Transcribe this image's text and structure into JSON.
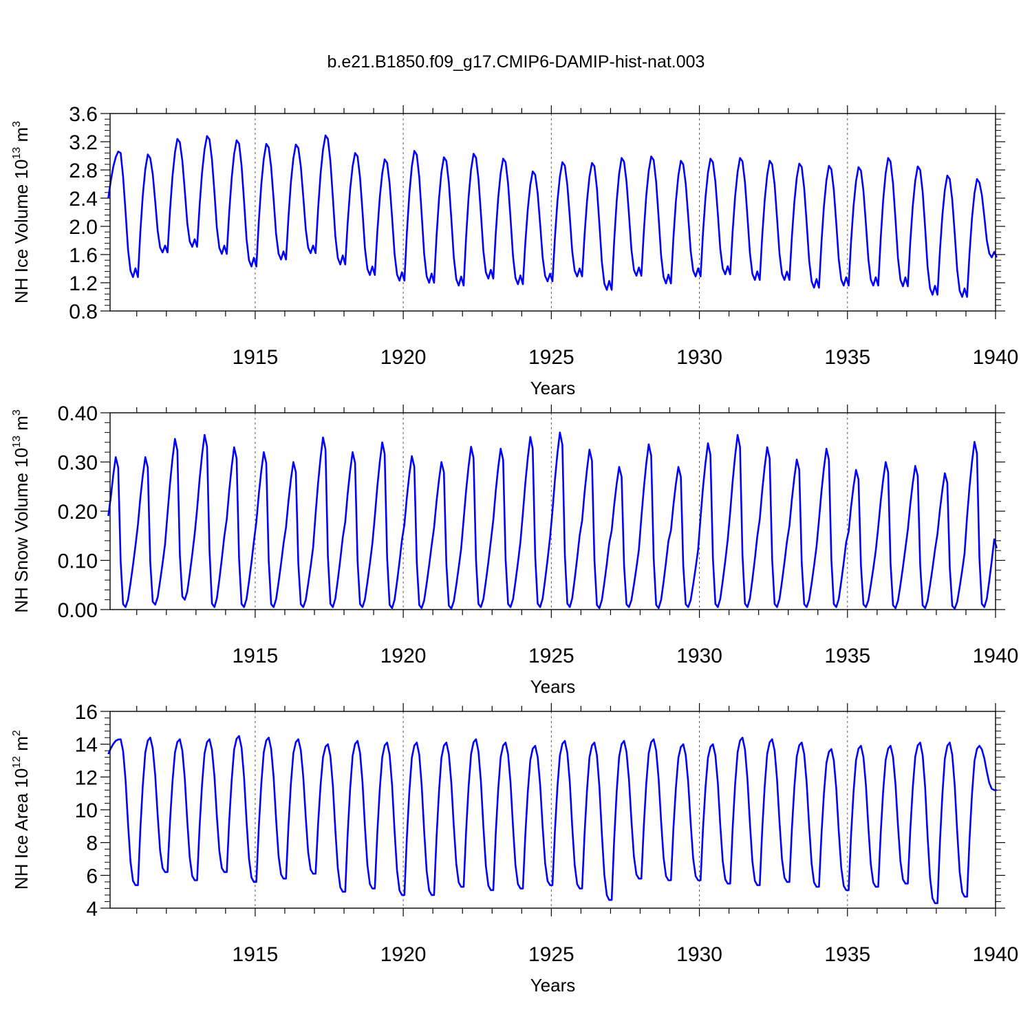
{
  "figure": {
    "title": "b.e21.B1850.f09_g17.CMIP6-DAMIP-hist-nat.003"
  },
  "chart_data": [
    {
      "type": "line",
      "id": "ice-volume",
      "xlabel": "Years",
      "ylabel_main": "NH Ice Volume 10",
      "ylabel_exp": "13",
      "ylabel_unit": " m",
      "ylabel_unit_exp": "3",
      "xlim": [
        1910.1,
        1940.0
      ],
      "ylim": [
        0.8,
        3.6
      ],
      "x_ticks": [
        1915,
        1920,
        1925,
        1930,
        1935,
        1940
      ],
      "x_tick_labels": [
        "1915",
        "1920",
        "1925",
        "1930",
        "1935",
        "1940"
      ],
      "y_ticks": [
        0.8,
        1.2,
        1.6,
        2.0,
        2.4,
        2.8,
        3.2,
        3.6
      ],
      "y_tick_labels": [
        "0.8",
        "1.2",
        "1.6",
        "2.0",
        "2.4",
        "2.8",
        "3.2",
        "3.6"
      ],
      "gridlines_x": [
        1915,
        1920,
        1925,
        1930,
        1935
      ],
      "line_color": "#0000ff",
      "series": [
        {
          "start_year": 1910.04,
          "step": 0.08333,
          "monthly_profile": [
            0.0,
            0.37,
            0.67,
            0.88,
            1.0,
            0.97,
            0.8,
            0.52,
            0.22,
            0.05,
            0.0,
            0.07
          ],
          "annual_max": [
            3.06,
            3.02,
            3.24,
            3.28,
            3.22,
            3.17,
            3.16,
            3.29,
            3.04,
            2.95,
            3.07,
            2.98,
            3.03,
            2.96,
            2.78,
            2.91,
            2.9,
            2.97,
            2.99,
            2.93,
            2.96,
            2.97,
            2.93,
            2.89,
            2.86,
            2.84,
            2.97,
            2.85,
            2.72,
            2.67
          ],
          "annual_min": [
            2.4,
            1.28,
            1.63,
            1.71,
            1.61,
            1.43,
            1.53,
            1.62,
            1.46,
            1.31,
            1.23,
            1.2,
            1.16,
            1.26,
            1.18,
            1.22,
            1.29,
            1.1,
            1.3,
            1.19,
            1.29,
            1.32,
            1.24,
            1.24,
            1.13,
            1.16,
            1.16,
            1.15,
            1.03,
            1.0,
            1.56
          ]
        }
      ]
    },
    {
      "type": "line",
      "id": "snow-volume",
      "xlabel": "Years",
      "ylabel_main": "NH Snow Volume 10",
      "ylabel_exp": "13",
      "ylabel_unit": " m",
      "ylabel_unit_exp": "3",
      "xlim": [
        1910.1,
        1940.0
      ],
      "ylim": [
        0.0,
        0.4
      ],
      "x_ticks": [
        1915,
        1920,
        1925,
        1930,
        1935,
        1940
      ],
      "x_tick_labels": [
        "1915",
        "1920",
        "1925",
        "1930",
        "1935",
        "1940"
      ],
      "y_ticks": [
        0.0,
        0.1,
        0.2,
        0.3,
        0.4
      ],
      "y_tick_labels": [
        "0.00",
        "0.10",
        "0.20",
        "0.30",
        "0.40"
      ],
      "gridlines_x": [
        1915,
        1920,
        1925,
        1930,
        1935
      ],
      "line_color": "#0000ff",
      "series": [
        {
          "start_year": 1910.04,
          "step": 0.08333,
          "monthly_profile": [
            0.55,
            0.73,
            0.88,
            1.0,
            0.93,
            0.3,
            0.02,
            0.0,
            0.05,
            0.16,
            0.28,
            0.41
          ],
          "annual_max": [
            0.31,
            0.31,
            0.347,
            0.355,
            0.33,
            0.32,
            0.3,
            0.35,
            0.32,
            0.34,
            0.312,
            0.3,
            0.331,
            0.327,
            0.351,
            0.36,
            0.325,
            0.29,
            0.336,
            0.29,
            0.338,
            0.355,
            0.33,
            0.305,
            0.327,
            0.284,
            0.3,
            0.292,
            0.277,
            0.341
          ],
          "annual_min": [
            0.005,
            0.005,
            0.01,
            0.02,
            0.005,
            0.005,
            0.005,
            0.005,
            0.005,
            0.005,
            0.003,
            0.003,
            0.002,
            0.005,
            0.005,
            0.005,
            0.005,
            0.003,
            0.005,
            0.003,
            0.005,
            0.005,
            0.005,
            0.005,
            0.005,
            0.005,
            0.005,
            0.003,
            0.003,
            0.002,
            0.005
          ],
          "first_value": 0.19,
          "last_value": 0.125
        }
      ]
    },
    {
      "type": "line",
      "id": "ice-area",
      "xlabel": "Years",
      "ylabel_main": "NH Ice Area 10",
      "ylabel_exp": "12",
      "ylabel_unit": " m",
      "ylabel_unit_exp": "2",
      "xlim": [
        1910.1,
        1940.0
      ],
      "ylim": [
        4,
        16
      ],
      "x_ticks": [
        1915,
        1920,
        1925,
        1930,
        1935,
        1940
      ],
      "x_tick_labels": [
        "1915",
        "1920",
        "1925",
        "1930",
        "1935",
        "1940"
      ],
      "y_ticks": [
        4,
        6,
        8,
        10,
        12,
        14,
        16
      ],
      "y_tick_labels": [
        "4",
        "6",
        "8",
        "10",
        "12",
        "14",
        "16"
      ],
      "gridlines_x": [
        1915,
        1920,
        1925,
        1930,
        1935
      ],
      "line_color": "#0000ff",
      "series": [
        {
          "start_year": 1910.04,
          "step": 0.08333,
          "monthly_profile": [
            0.0,
            0.38,
            0.68,
            0.9,
            0.98,
            1.0,
            0.92,
            0.72,
            0.42,
            0.16,
            0.03,
            0.0
          ],
          "annual_max": [
            14.3,
            14.4,
            14.3,
            14.3,
            14.5,
            14.4,
            14.3,
            14.0,
            14.2,
            14.1,
            14.1,
            14.1,
            14.3,
            14.1,
            13.9,
            14.2,
            14.1,
            14.2,
            14.3,
            14.0,
            14.0,
            14.4,
            14.3,
            14.1,
            13.7,
            13.9,
            13.9,
            14.1,
            14.1,
            13.9
          ],
          "annual_min": [
            13.4,
            5.4,
            6.2,
            5.7,
            6.2,
            5.6,
            5.8,
            6.1,
            5.0,
            5.2,
            4.8,
            4.8,
            5.3,
            5.1,
            5.2,
            5.4,
            5.2,
            4.5,
            5.8,
            5.7,
            5.7,
            5.5,
            5.4,
            5.6,
            5.3,
            5.1,
            5.3,
            5.5,
            4.3,
            4.7,
            11.2
          ]
        }
      ]
    }
  ]
}
